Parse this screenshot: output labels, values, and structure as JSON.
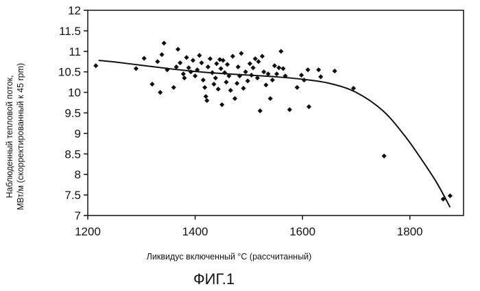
{
  "chart_data": {
    "type": "scatter",
    "xlabel": "Ликвидус включенный °С (рассчитанный)",
    "ylabel_line1": "Наблюденный тепловой поток,",
    "ylabel_line2": "МВт/м (скорректированный к 45 rpm)",
    "caption": "ФИГ.1",
    "xlim": [
      1200,
      1900
    ],
    "ylim": [
      7,
      12
    ],
    "x_ticks": [
      "1200",
      "1400",
      "1600",
      "1800"
    ],
    "y_ticks": [
      "7",
      "7.5",
      "8",
      "8.5",
      "9",
      "9.5",
      "10",
      "10.5",
      "11",
      "11.5",
      "12"
    ],
    "points": [
      [
        1215,
        10.65
      ],
      [
        1290,
        10.58
      ],
      [
        1305,
        10.83
      ],
      [
        1320,
        10.2
      ],
      [
        1330,
        10.75
      ],
      [
        1335,
        10.0
      ],
      [
        1338,
        10.92
      ],
      [
        1342,
        11.2
      ],
      [
        1348,
        10.55
      ],
      [
        1360,
        10.12
      ],
      [
        1365,
        10.62
      ],
      [
        1368,
        11.05
      ],
      [
        1372,
        10.72
      ],
      [
        1378,
        10.45
      ],
      [
        1380,
        10.35
      ],
      [
        1384,
        10.85
      ],
      [
        1388,
        10.6
      ],
      [
        1392,
        10.5
      ],
      [
        1396,
        10.78
      ],
      [
        1400,
        10.4
      ],
      [
        1404,
        10.55
      ],
      [
        1408,
        10.9
      ],
      [
        1412,
        10.72
      ],
      [
        1415,
        10.3
      ],
      [
        1418,
        10.12
      ],
      [
        1420,
        9.9
      ],
      [
        1422,
        9.8
      ],
      [
        1424,
        10.62
      ],
      [
        1428,
        10.82
      ],
      [
        1432,
        10.48
      ],
      [
        1435,
        10.2
      ],
      [
        1438,
        10.35
      ],
      [
        1440,
        10.7
      ],
      [
        1443,
        10.08
      ],
      [
        1446,
        10.8
      ],
      [
        1448,
        10.58
      ],
      [
        1450,
        9.7
      ],
      [
        1452,
        10.78
      ],
      [
        1455,
        10.48
      ],
      [
        1458,
        10.25
      ],
      [
        1460,
        10.68
      ],
      [
        1463,
        10.4
      ],
      [
        1466,
        10.05
      ],
      [
        1470,
        10.88
      ],
      [
        1474,
        9.85
      ],
      [
        1478,
        10.22
      ],
      [
        1480,
        10.62
      ],
      [
        1483,
        10.4
      ],
      [
        1486,
        10.95
      ],
      [
        1490,
        10.1
      ],
      [
        1494,
        10.5
      ],
      [
        1498,
        10.28
      ],
      [
        1502,
        10.7
      ],
      [
        1505,
        10.42
      ],
      [
        1508,
        10.6
      ],
      [
        1512,
        10.82
      ],
      [
        1516,
        10.35
      ],
      [
        1518,
        10.75
      ],
      [
        1521,
        9.55
      ],
      [
        1525,
        10.88
      ],
      [
        1528,
        10.5
      ],
      [
        1532,
        10.18
      ],
      [
        1536,
        10.45
      ],
      [
        1540,
        9.85
      ],
      [
        1544,
        10.3
      ],
      [
        1548,
        10.65
      ],
      [
        1552,
        10.45
      ],
      [
        1556,
        10.6
      ],
      [
        1560,
        11.0
      ],
      [
        1564,
        10.58
      ],
      [
        1568,
        10.4
      ],
      [
        1576,
        9.58
      ],
      [
        1590,
        10.12
      ],
      [
        1598,
        10.42
      ],
      [
        1603,
        10.3
      ],
      [
        1610,
        10.55
      ],
      [
        1612,
        9.65
      ],
      [
        1630,
        10.55
      ],
      [
        1634,
        10.38
      ],
      [
        1660,
        10.52
      ],
      [
        1695,
        10.1
      ],
      [
        1752,
        8.45
      ],
      [
        1862,
        7.4
      ],
      [
        1875,
        7.48
      ]
    ],
    "fit_curve": [
      [
        1220,
        10.78
      ],
      [
        1250,
        10.74
      ],
      [
        1300,
        10.66
      ],
      [
        1350,
        10.58
      ],
      [
        1400,
        10.51
      ],
      [
        1450,
        10.46
      ],
      [
        1500,
        10.42
      ],
      [
        1550,
        10.38
      ],
      [
        1600,
        10.32
      ],
      [
        1650,
        10.22
      ],
      [
        1700,
        10.0
      ],
      [
        1750,
        9.55
      ],
      [
        1790,
        8.95
      ],
      [
        1820,
        8.4
      ],
      [
        1850,
        7.8
      ],
      [
        1875,
        7.2
      ]
    ]
  }
}
